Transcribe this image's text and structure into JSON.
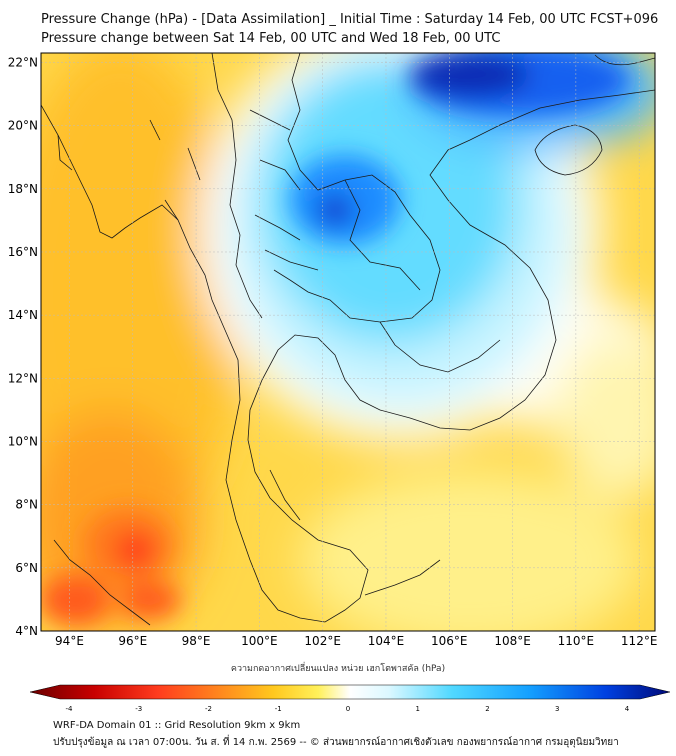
{
  "header": {
    "title": "Pressure Change (hPa) - [Data Assimilation] _ Initial Time : Saturday 14 Feb, 00 UTC FCST+096",
    "subtitle": "Pressure change between Sat 14 Feb, 00 UTC and Wed 18 Feb, 00 UTC"
  },
  "map": {
    "lat_labels": [
      "22°N",
      "20°N",
      "18°N",
      "16°N",
      "14°N",
      "12°N",
      "10°N",
      "8°N",
      "6°N",
      "4°N"
    ],
    "lon_labels": [
      "94°E",
      "96°E",
      "98°E",
      "100°E",
      "102°E",
      "104°E",
      "106°E",
      "108°E",
      "110°E",
      "112°E"
    ],
    "lat_range": [
      4,
      22.3
    ],
    "lon_range": [
      93.1,
      112.5
    ],
    "grid": true
  },
  "colorbar": {
    "label": "ความกดอากาศเปลี่ยนแปลง หน่วย เฮกโตพาสคัล (hPa)",
    "tick_labels": [
      "-4",
      "-3",
      "-2",
      "-1",
      "0",
      "1",
      "2",
      "3",
      "4"
    ],
    "range": [
      -4,
      4
    ],
    "colors": [
      "#6b0000",
      "#c80000",
      "#ff3c1e",
      "#ff8a1e",
      "#ffc81e",
      "#fff05a",
      "#fffbe0",
      "#ffffff",
      "#dcf8ff",
      "#50d8ff",
      "#14a0ff",
      "#0040e0",
      "#000a78"
    ]
  },
  "footer": {
    "line1": "WRF-DA Domain 01 :: Grid Resolution 9km x 9km",
    "line2": "ปรับปรุงข้อมูล ณ เวลา 07:00น. วัน ส. ที่ 14 ก.พ. 2569 -- © ส่วนพยากรณ์อากาศเชิงตัวเลข กองพยากรณ์อากาศ กรมอุตุนิยมวิทยา"
  }
}
